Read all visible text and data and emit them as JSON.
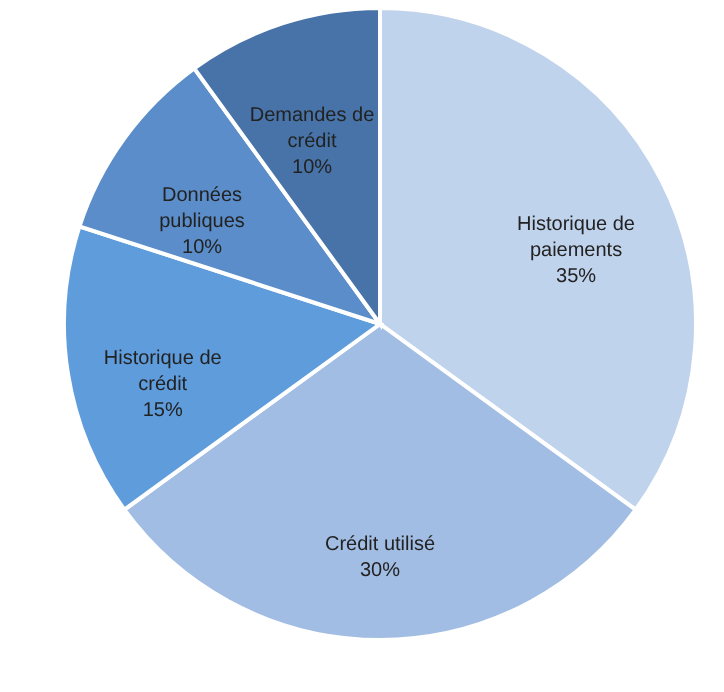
{
  "chart_data": {
    "type": "pie",
    "categories": [
      "Historique de paiements",
      "Crédit utilisé",
      "Historique de crédit",
      "Données publiques",
      "Demandes de crédit"
    ],
    "values": [
      35,
      30,
      15,
      10,
      10
    ],
    "value_labels": [
      "35%",
      "30%",
      "15%",
      "10%",
      "10%"
    ],
    "colors": [
      "#c0d3ec",
      "#a2bde3",
      "#5f9cdc",
      "#5a8dc9",
      "#4773a8"
    ]
  }
}
